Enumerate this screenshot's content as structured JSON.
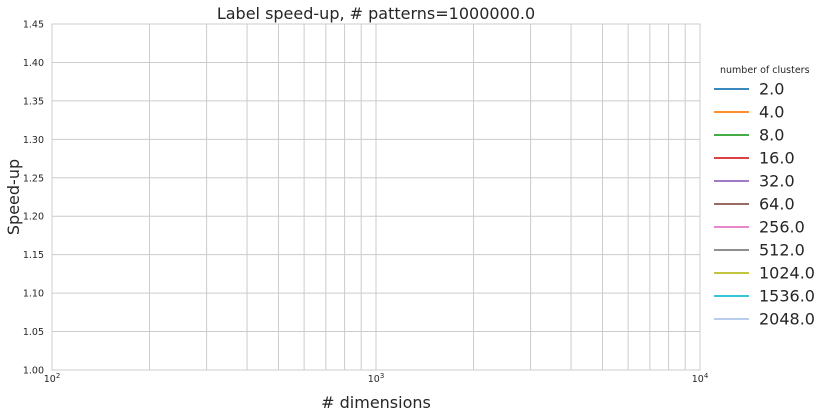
{
  "chart_data": {
    "type": "line",
    "title": "Label speed-up, # patterns=1000000.0",
    "xlabel": "# dimensions",
    "ylabel": "Speed-up",
    "x_scale": "log",
    "xlim": [
      100,
      10000
    ],
    "ylim": [
      1.0,
      1.45
    ],
    "x_tick_labels": [
      "10",
      "10",
      "10"
    ],
    "x_tick_exponents": [
      "2",
      "3",
      "4"
    ],
    "x_tick_values": [
      100,
      1000,
      10000
    ],
    "y_ticks": [
      1.0,
      1.05,
      1.1,
      1.15,
      1.2,
      1.25,
      1.3,
      1.35,
      1.4,
      1.45
    ],
    "y_tick_labels": [
      "1.00",
      "1.05",
      "1.10",
      "1.15",
      "1.20",
      "1.25",
      "1.30",
      "1.35",
      "1.40",
      "1.45"
    ],
    "grid": true,
    "legend": {
      "title": "number of clusters",
      "placement": "outside-right"
    },
    "series": [
      {
        "name": "2.0",
        "color": "#1f77b4",
        "x": [],
        "y": []
      },
      {
        "name": "4.0",
        "color": "#ff7f0e",
        "x": [],
        "y": []
      },
      {
        "name": "8.0",
        "color": "#2ca02c",
        "x": [],
        "y": []
      },
      {
        "name": "16.0",
        "color": "#d62728",
        "x": [],
        "y": []
      },
      {
        "name": "32.0",
        "color": "#9467bd",
        "x": [],
        "y": []
      },
      {
        "name": "64.0",
        "color": "#8c564b",
        "x": [],
        "y": []
      },
      {
        "name": "256.0",
        "color": "#e377c2",
        "x": [],
        "y": []
      },
      {
        "name": "512.0",
        "color": "#7f7f7f",
        "x": [],
        "y": []
      },
      {
        "name": "1024.0",
        "color": "#bcbd22",
        "x": [],
        "y": []
      },
      {
        "name": "1536.0",
        "color": "#17becf",
        "x": [],
        "y": []
      },
      {
        "name": "2048.0",
        "color": "#aec7e8",
        "x": [],
        "y": []
      }
    ]
  }
}
